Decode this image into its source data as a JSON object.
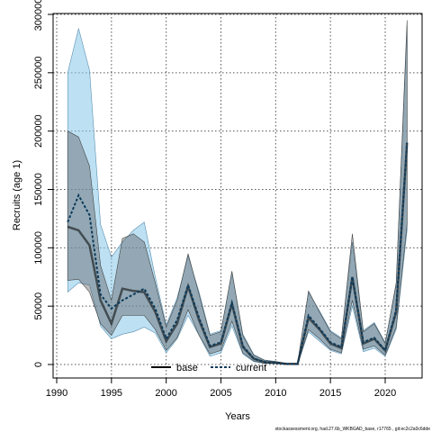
{
  "chart_data": {
    "type": "line",
    "xlabel": "Years",
    "ylabel": "Recruits (age 1)",
    "xlim": [
      1990,
      2022
    ],
    "ylim": [
      0,
      300000
    ],
    "x_ticks": [
      1990,
      1995,
      2000,
      2005,
      2010,
      2015,
      2020
    ],
    "y_ticks": [
      0,
      50000,
      100000,
      150000,
      200000,
      250000,
      300000
    ],
    "grid": true,
    "legend_position": "bottom-center",
    "x": [
      1991,
      1992,
      1993,
      1994,
      1995,
      1996,
      1997,
      1998,
      1999,
      2000,
      2001,
      2002,
      2003,
      2004,
      2005,
      2006,
      2007,
      2008,
      2009,
      2010,
      2011,
      2012,
      2013,
      2014,
      2015,
      2016,
      2017,
      2018,
      2019,
      2020,
      2021,
      2022
    ],
    "series": [
      {
        "name": "base",
        "color": "#000000",
        "band_color": "#555555",
        "values": [
          118000,
          115000,
          102000,
          55000,
          35000,
          65000,
          63000,
          62000,
          45000,
          20000,
          35000,
          67000,
          38000,
          15000,
          18000,
          52000,
          15000,
          5000,
          2000,
          1500,
          500,
          500,
          40000,
          30000,
          18000,
          14000,
          75000,
          18000,
          22000,
          12000,
          45000,
          190000
        ],
        "lower": [
          72000,
          73000,
          62000,
          35000,
          25000,
          42000,
          42000,
          42000,
          30000,
          12000,
          23000,
          47000,
          25000,
          9000,
          12000,
          37000,
          10000,
          3000,
          1000,
          800,
          200,
          200,
          30000,
          22000,
          13000,
          10000,
          55000,
          13000,
          16000,
          8000,
          32000,
          120000
        ],
        "upper": [
          200000,
          195000,
          170000,
          85000,
          55000,
          108000,
          112000,
          105000,
          70000,
          32000,
          55000,
          95000,
          60000,
          25000,
          28000,
          80000,
          25000,
          8000,
          3500,
          2500,
          900,
          900,
          63000,
          45000,
          28000,
          22000,
          112000,
          28000,
          35000,
          18000,
          70000,
          295000
        ]
      },
      {
        "name": "current",
        "color": "#0d3b5c",
        "band_color": "#87c7ea",
        "values": [
          122000,
          145000,
          128000,
          60000,
          48000,
          55000,
          60000,
          65000,
          48000,
          22000,
          38000,
          68000,
          40000,
          16000,
          19000,
          53000,
          16000,
          5000,
          2000,
          1500,
          500,
          500,
          42000,
          31000,
          19000,
          15000,
          75000,
          19000,
          23000,
          12000,
          47000,
          190000
        ],
        "lower": [
          62000,
          70000,
          68000,
          33000,
          22000,
          26000,
          28000,
          32000,
          27000,
          10000,
          22000,
          42000,
          25000,
          7000,
          10000,
          33000,
          9000,
          2500,
          900,
          700,
          150,
          150,
          28000,
          20000,
          12000,
          9000,
          50000,
          11000,
          14000,
          7000,
          30000,
          115000
        ],
        "upper": [
          250000,
          288000,
          252000,
          120000,
          92000,
          105000,
          115000,
          122000,
          75000,
          34000,
          57000,
          93000,
          62000,
          26000,
          29000,
          79000,
          26000,
          8500,
          3800,
          2700,
          1000,
          1000,
          62000,
          46000,
          29000,
          23000,
          105000,
          29000,
          36000,
          19000,
          68000,
          290000
        ]
      }
    ],
    "footnote": "stockassessment.org, had.27.6b_WKBGAD_base, r17765 , git:ec2c2a0c6dde"
  }
}
